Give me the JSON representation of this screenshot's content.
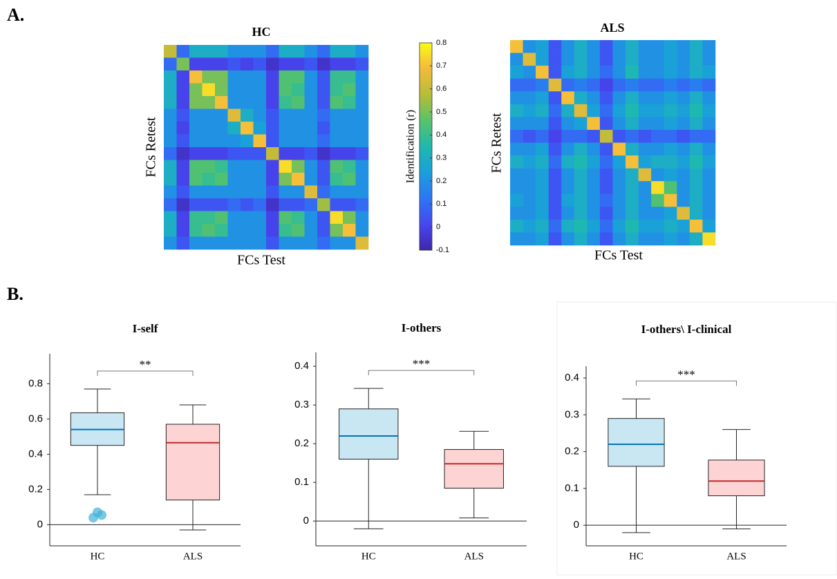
{
  "panel_labels": [
    "A.",
    "B."
  ],
  "colorbar": {
    "label": "Identification (r)",
    "clim": [
      -0.1,
      0.8
    ],
    "ticks": [
      -0.1,
      0,
      0.1,
      0.2,
      0.3,
      0.4,
      0.5,
      0.6,
      0.7,
      0.8
    ]
  },
  "chart_data": [
    {
      "type": "heatmap",
      "title": "HC",
      "xlabel": "FCs Test",
      "ylabel": "FCs Retest",
      "z": [
        [
          0.6,
          0.1,
          0.3,
          0.3,
          0.3,
          0.2,
          0.2,
          0.2,
          0.1,
          0.3,
          0.3,
          0.2,
          0.1,
          0.3,
          0.3,
          0.2
        ],
        [
          0.1,
          0.5,
          0,
          0,
          0,
          0.05,
          0,
          0.05,
          -0.05,
          0,
          0,
          0.05,
          -0.05,
          0,
          0,
          0.05
        ],
        [
          0.3,
          0,
          0.7,
          0.5,
          0.5,
          0.2,
          0.2,
          0.2,
          0,
          0.45,
          0.45,
          0.2,
          0.05,
          0.4,
          0.4,
          0.2
        ],
        [
          0.3,
          0,
          0.5,
          0.75,
          0.5,
          0.2,
          0.2,
          0.2,
          0,
          0.45,
          0.4,
          0.2,
          0.05,
          0.4,
          0.45,
          0.2
        ],
        [
          0.3,
          0,
          0.5,
          0.5,
          0.7,
          0.2,
          0.2,
          0.2,
          0,
          0.4,
          0.45,
          0.2,
          0.05,
          0.45,
          0.4,
          0.2
        ],
        [
          0.2,
          0.05,
          0.2,
          0.2,
          0.2,
          0.65,
          0.3,
          0.2,
          0.05,
          0.2,
          0.2,
          0.2,
          0.1,
          0.2,
          0.2,
          0.2
        ],
        [
          0.2,
          0,
          0.2,
          0.2,
          0.2,
          0.3,
          0.7,
          0.25,
          0.05,
          0.2,
          0.2,
          0.2,
          0.05,
          0.2,
          0.2,
          0.2
        ],
        [
          0.2,
          0.05,
          0.2,
          0.2,
          0.2,
          0.2,
          0.25,
          0.7,
          0.05,
          0.2,
          0.2,
          0.2,
          0.1,
          0.2,
          0.2,
          0.2
        ],
        [
          0.1,
          -0.05,
          0,
          0,
          0,
          0.05,
          0.05,
          0.05,
          0.6,
          0,
          0,
          0.05,
          -0.05,
          0,
          0,
          0.05
        ],
        [
          0.3,
          0,
          0.45,
          0.45,
          0.4,
          0.2,
          0.2,
          0.2,
          0,
          0.75,
          0.5,
          0.2,
          0.05,
          0.45,
          0.4,
          0.2
        ],
        [
          0.3,
          0,
          0.45,
          0.4,
          0.45,
          0.2,
          0.2,
          0.2,
          0,
          0.5,
          0.7,
          0.2,
          0.05,
          0.4,
          0.45,
          0.2
        ],
        [
          0.2,
          0.05,
          0.2,
          0.2,
          0.2,
          0.2,
          0.2,
          0.2,
          0.05,
          0.2,
          0.2,
          0.65,
          0.1,
          0.2,
          0.2,
          0.2
        ],
        [
          0.1,
          -0.05,
          0.05,
          0.05,
          0.05,
          0.1,
          0.05,
          0.1,
          -0.05,
          0.05,
          0.05,
          0.1,
          0.55,
          0.05,
          0.05,
          0.1
        ],
        [
          0.3,
          0,
          0.4,
          0.4,
          0.45,
          0.2,
          0.2,
          0.2,
          0,
          0.45,
          0.4,
          0.2,
          0.05,
          0.75,
          0.5,
          0.2
        ],
        [
          0.3,
          0,
          0.4,
          0.45,
          0.4,
          0.2,
          0.2,
          0.2,
          0,
          0.4,
          0.45,
          0.2,
          0.05,
          0.5,
          0.7,
          0.2
        ],
        [
          0.2,
          0.05,
          0.2,
          0.2,
          0.2,
          0.2,
          0.2,
          0.2,
          0.05,
          0.2,
          0.2,
          0.2,
          0.1,
          0.2,
          0.2,
          0.65
        ]
      ]
    },
    {
      "type": "heatmap",
      "title": "ALS",
      "xlabel": "FCs Test",
      "ylabel": "FCs Retest",
      "z": [
        [
          0.7,
          0.2,
          0.25,
          0.05,
          0.2,
          0.3,
          0.2,
          0.05,
          0.2,
          0.3,
          0.2,
          0.2,
          0.25,
          0.2,
          0.3,
          0.2
        ],
        [
          0.2,
          0.65,
          0.25,
          0.05,
          0.2,
          0.3,
          0.2,
          0.05,
          0.2,
          0.3,
          0.2,
          0.2,
          0.25,
          0.2,
          0.3,
          0.2
        ],
        [
          0.25,
          0.2,
          0.7,
          0.05,
          0.25,
          0.3,
          0.2,
          0.1,
          0.2,
          0.35,
          0.2,
          0.2,
          0.25,
          0.2,
          0.3,
          0.25
        ],
        [
          0.1,
          0.1,
          0.15,
          0.65,
          0.1,
          0.15,
          0.1,
          0,
          0.1,
          0.15,
          0.1,
          0.1,
          0.15,
          0.1,
          0.15,
          0.1
        ],
        [
          0.2,
          0.2,
          0.25,
          0.05,
          0.7,
          0.3,
          0.2,
          0.05,
          0.2,
          0.3,
          0.2,
          0.2,
          0.25,
          0.2,
          0.3,
          0.2
        ],
        [
          0.3,
          0.25,
          0.3,
          0.1,
          0.3,
          0.65,
          0.25,
          0.1,
          0.25,
          0.35,
          0.25,
          0.25,
          0.3,
          0.25,
          0.35,
          0.25
        ],
        [
          0.2,
          0.2,
          0.2,
          0.05,
          0.2,
          0.25,
          0.7,
          0.05,
          0.2,
          0.3,
          0.2,
          0.2,
          0.25,
          0.2,
          0.3,
          0.2
        ],
        [
          0.1,
          0.05,
          0.1,
          0,
          0.1,
          0.1,
          0.05,
          0.6,
          0.05,
          0.1,
          0.05,
          0.1,
          0.1,
          0.05,
          0.1,
          0.1
        ],
        [
          0.2,
          0.2,
          0.25,
          0.05,
          0.2,
          0.3,
          0.2,
          0.05,
          0.7,
          0.3,
          0.2,
          0.2,
          0.25,
          0.2,
          0.3,
          0.2
        ],
        [
          0.3,
          0.25,
          0.3,
          0.1,
          0.3,
          0.35,
          0.25,
          0.1,
          0.25,
          0.7,
          0.25,
          0.3,
          0.3,
          0.25,
          0.35,
          0.25
        ],
        [
          0.2,
          0.2,
          0.25,
          0.05,
          0.2,
          0.3,
          0.2,
          0.05,
          0.2,
          0.3,
          0.65,
          0.2,
          0.25,
          0.2,
          0.3,
          0.2
        ],
        [
          0.2,
          0.2,
          0.25,
          0.05,
          0.2,
          0.3,
          0.2,
          0.05,
          0.2,
          0.3,
          0.2,
          0.75,
          0.45,
          0.2,
          0.3,
          0.2
        ],
        [
          0.25,
          0.2,
          0.25,
          0.05,
          0.25,
          0.3,
          0.2,
          0.1,
          0.2,
          0.3,
          0.2,
          0.45,
          0.7,
          0.2,
          0.3,
          0.2
        ],
        [
          0.2,
          0.2,
          0.25,
          0.05,
          0.2,
          0.3,
          0.2,
          0.05,
          0.2,
          0.3,
          0.2,
          0.2,
          0.25,
          0.65,
          0.3,
          0.2
        ],
        [
          0.3,
          0.25,
          0.3,
          0.1,
          0.3,
          0.35,
          0.25,
          0.1,
          0.25,
          0.35,
          0.25,
          0.25,
          0.3,
          0.25,
          0.7,
          0.25
        ],
        [
          0.2,
          0.2,
          0.25,
          0.05,
          0.2,
          0.3,
          0.2,
          0.05,
          0.2,
          0.3,
          0.2,
          0.2,
          0.25,
          0.2,
          0.3,
          0.75
        ]
      ]
    },
    {
      "type": "box",
      "title": "I-self",
      "categories": [
        "HC",
        "ALS"
      ],
      "annotation": "**",
      "ylim": [
        -0.12,
        0.97
      ],
      "yticks": [
        0,
        0.2,
        0.4,
        0.6,
        0.8
      ],
      "boxes": [
        {
          "whislo": 0.17,
          "q1": 0.45,
          "med": 0.54,
          "q3": 0.635,
          "whishi": 0.77,
          "fliers": [
            0.04,
            0.07,
            0.055
          ],
          "color": "#c9e6f3",
          "median_color": "#0072bd"
        },
        {
          "whislo": -0.03,
          "q1": 0.14,
          "med": 0.465,
          "q3": 0.57,
          "whishi": 0.68,
          "fliers": [],
          "color": "#fdd3d3",
          "median_color": "#c0282c"
        }
      ]
    },
    {
      "type": "box",
      "title": "I-others",
      "categories": [
        "HC",
        "ALS"
      ],
      "annotation": "***",
      "ylim": [
        -0.064,
        0.436
      ],
      "yticks": [
        0,
        0.1,
        0.2,
        0.3,
        0.4
      ],
      "boxes": [
        {
          "whislo": -0.02,
          "q1": 0.16,
          "med": 0.22,
          "q3": 0.29,
          "whishi": 0.343,
          "fliers": [],
          "color": "#c9e6f3",
          "median_color": "#0072bd"
        },
        {
          "whislo": 0.008,
          "q1": 0.085,
          "med": 0.148,
          "q3": 0.185,
          "whishi": 0.232,
          "fliers": [],
          "color": "#fdd3d3",
          "median_color": "#c0282c"
        }
      ]
    },
    {
      "type": "box",
      "title": "I-others\\ I-clinical",
      "categories": [
        "HC",
        "ALS"
      ],
      "annotation": "***",
      "ylim": [
        -0.056,
        0.432
      ],
      "yticks": [
        0,
        0.1,
        0.2,
        0.3,
        0.4
      ],
      "boxes": [
        {
          "whislo": -0.02,
          "q1": 0.16,
          "med": 0.22,
          "q3": 0.29,
          "whishi": 0.343,
          "fliers": [],
          "color": "#c9e6f3",
          "median_color": "#0072bd"
        },
        {
          "whislo": -0.01,
          "q1": 0.08,
          "med": 0.12,
          "q3": 0.177,
          "whishi": 0.26,
          "fliers": [],
          "color": "#fdd3d3",
          "median_color": "#c0282c"
        }
      ]
    }
  ]
}
